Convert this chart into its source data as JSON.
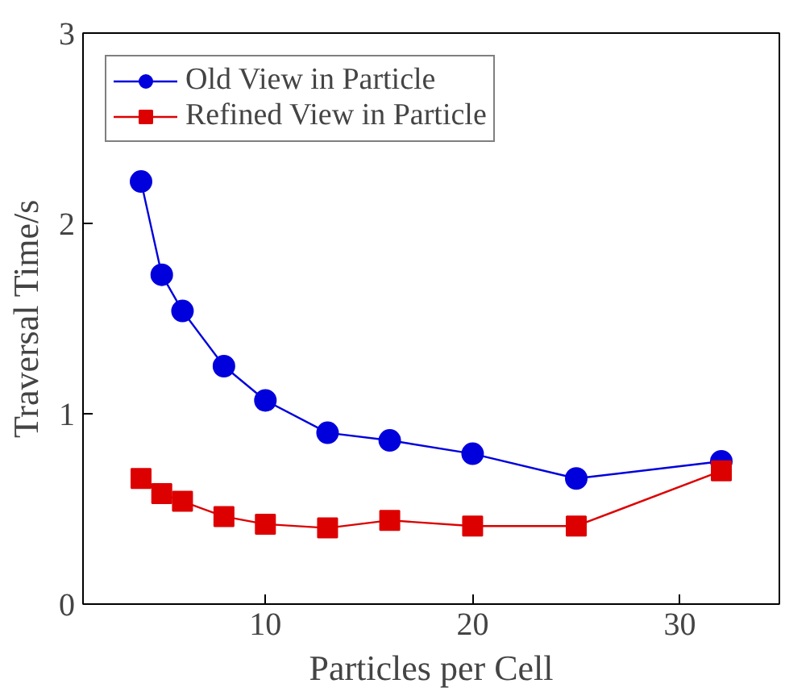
{
  "chart_data": {
    "type": "line",
    "xlabel": "Particles per Cell",
    "ylabel": "Traversal Time/s",
    "x": [
      4,
      5,
      6,
      8,
      10,
      13,
      16,
      20,
      25,
      32
    ],
    "series": [
      {
        "name": "Old View in Particle",
        "color": "#0000dd",
        "marker": "circle",
        "values": [
          2.22,
          1.73,
          1.54,
          1.25,
          1.07,
          0.9,
          0.86,
          0.79,
          0.66,
          0.75
        ]
      },
      {
        "name": "Refined View in Particle",
        "color": "#dd0000",
        "marker": "square",
        "values": [
          0.66,
          0.58,
          0.54,
          0.46,
          0.42,
          0.4,
          0.44,
          0.41,
          0.41,
          0.7
        ]
      }
    ],
    "xlim": [
      1.2,
      34.8
    ],
    "xticks": [
      10,
      20,
      30
    ],
    "ylim": [
      0,
      3
    ],
    "yticks": [
      0,
      1,
      2,
      3
    ],
    "grid": false,
    "legend": "top left",
    "line_style": "solid"
  }
}
